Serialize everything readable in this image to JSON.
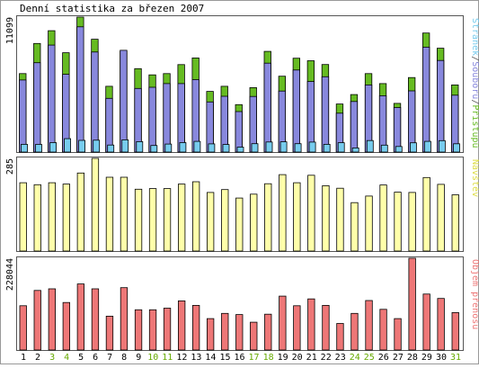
{
  "chart_data": {
    "type": "bar",
    "title": "Denní statistika za březen 2007",
    "categories": [
      "1",
      "2",
      "3",
      "4",
      "5",
      "6",
      "7",
      "8",
      "9",
      "10",
      "11",
      "12",
      "13",
      "14",
      "15",
      "16",
      "17",
      "18",
      "19",
      "20",
      "21",
      "22",
      "23",
      "24",
      "25",
      "26",
      "27",
      "28",
      "29",
      "30",
      "31"
    ],
    "weekend_days": [
      "3",
      "4",
      "10",
      "11",
      "17",
      "18",
      "24",
      "25",
      "31"
    ],
    "colors": {
      "pristupu": "#66bb22",
      "souboru": "#8888dd",
      "stranek": "#77ccee",
      "navstevy": "#ffffaa",
      "objem": "#ee7777",
      "weekend_label": "#66aa00",
      "weekday_label": "#000000",
      "panel_border": "#555555",
      "panel_bg": "#ffffff",
      "outer_border": "#999999"
    },
    "panels": [
      {
        "id": "hits",
        "ymax": 11099,
        "ymax_label": "11099",
        "side_label_parts": [
          {
            "text": "Stránek",
            "color": "#77ccee"
          },
          {
            "text": "/",
            "color": "#555555"
          },
          {
            "text": "Souborů",
            "color": "#8888dd"
          },
          {
            "text": "/",
            "color": "#555555"
          },
          {
            "text": "Přístupů",
            "color": "#66bb22"
          }
        ],
        "series": [
          {
            "name": "Přístupů",
            "color": "#66bb22",
            "values": [
              6450,
              8930,
              9980,
              8170,
              11099,
              9280,
              5410,
              8280,
              6860,
              6350,
              6450,
              7190,
              7740,
              4990,
              5410,
              3900,
              5300,
              8280,
              6240,
              7720,
              7510,
              7200,
              3950,
              4730,
              6450,
              5630,
              4000,
              6130,
              9790,
              8540,
              5520
            ]
          },
          {
            "name": "Souborů",
            "color": "#8888dd",
            "values": [
              5930,
              7350,
              8800,
              6390,
              10300,
              8230,
              4420,
              8370,
              5230,
              5330,
              5630,
              5630,
              5960,
              4120,
              4590,
              3330,
              4570,
              7310,
              5020,
              6750,
              5800,
              6190,
              3200,
              4160,
              5520,
              4630,
              3660,
              5030,
              8630,
              7530,
              4680
            ]
          },
          {
            "name": "Stránek",
            "color": "#77ccee",
            "values": [
              640,
              630,
              780,
              1100,
              960,
              980,
              580,
              1010,
              860,
              540,
              660,
              780,
              880,
              670,
              620,
              410,
              690,
              830,
              840,
              690,
              820,
              640,
              770,
              340,
              950,
              570,
              460,
              760,
              880,
              940,
              680
            ]
          }
        ]
      },
      {
        "id": "visits",
        "ymax": 285,
        "ymax_label": "285",
        "side_label_parts": [
          {
            "text": "Návštěv",
            "color": "#dddd44"
          }
        ],
        "series": [
          {
            "name": "Návštěv",
            "color": "#ffffaa",
            "values": [
              210,
              204,
              210,
              206,
              240,
              285,
              227,
              227,
              190,
              192,
              192,
              206,
              213,
              180,
              189,
              163,
              175,
              207,
              235,
              210,
              233,
              201,
              193,
              149,
              169,
              203,
              181,
              180,
              226,
              205,
              173
            ]
          }
        ]
      },
      {
        "id": "bytes",
        "ymax": 228044,
        "ymax_label": "228044",
        "side_label_parts": [
          {
            "text": "Objem přenosu",
            "color": "#ee7777"
          }
        ],
        "series": [
          {
            "name": "Objem přenosu",
            "color": "#ee7777",
            "values": [
              110000,
              148000,
              152000,
              118000,
              164000,
              152000,
              84000,
              155000,
              100000,
              100000,
              104000,
              122000,
              111000,
              78000,
              91000,
              88000,
              69000,
              89000,
              134000,
              110000,
              127000,
              111000,
              66000,
              91000,
              123000,
              101000,
              78000,
              228044,
              139000,
              128000,
              93000
            ]
          }
        ]
      }
    ]
  }
}
